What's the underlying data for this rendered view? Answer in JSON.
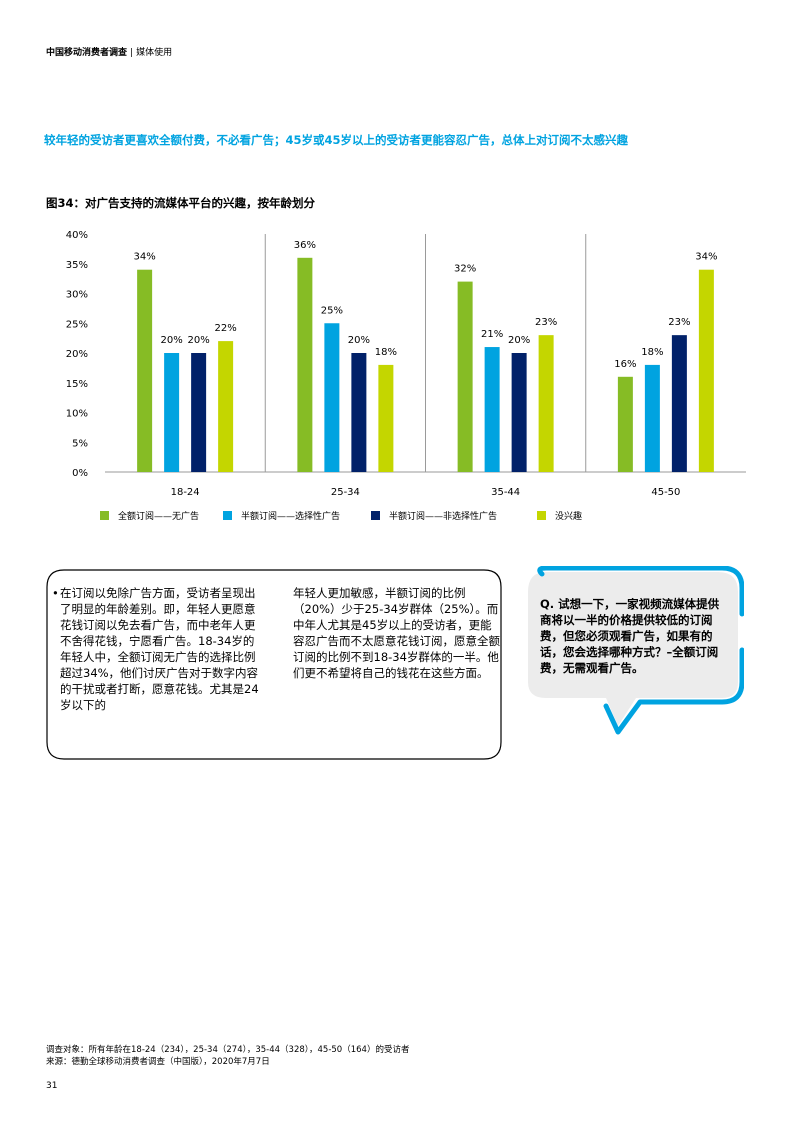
{
  "header": {
    "title": "中国移动消费者调查",
    "separator": "|",
    "section": "媒体使用"
  },
  "subtitle": "较年轻的受访者更喜欢全额付费，不必看广告；45岁或45岁以上的受访者更能容忍广告，总体上对订阅不太感兴趣",
  "figure_title": "图34：对广告支持的流媒体平台的兴趣，按年龄划分",
  "chart_data": {
    "type": "bar",
    "categories": [
      "18-24",
      "25-34",
      "35-44",
      "45-50"
    ],
    "ylim": [
      0,
      40
    ],
    "yticks": [
      "40%",
      "35%",
      "30%",
      "25%",
      "20%",
      "15%",
      "10%",
      "5%",
      "0%"
    ],
    "ytick_values": [
      40,
      35,
      30,
      25,
      20,
      15,
      10,
      5,
      0
    ],
    "grid": false,
    "legend_position": "bottom",
    "series": [
      {
        "name": "全额订阅——无广告",
        "color": "#86bc25",
        "values": [
          34,
          36,
          32,
          16
        ],
        "labels": [
          "34%",
          "36%",
          "32%",
          "16%"
        ]
      },
      {
        "name": "半额订阅——选择性广告",
        "color": "#00a3e0",
        "values": [
          20,
          25,
          21,
          18
        ],
        "labels": [
          "20%",
          "25%",
          "21%",
          "18%"
        ]
      },
      {
        "name": "半额订阅——非选择性广告",
        "color": "#012169",
        "values": [
          20,
          20,
          20,
          23
        ],
        "labels": [
          "20%",
          "20%",
          "20%",
          "23%"
        ]
      },
      {
        "name": "没兴趣",
        "color": "#c4d600",
        "values": [
          22,
          18,
          23,
          34
        ],
        "labels": [
          "22%",
          "18%",
          "23%",
          "34%"
        ]
      }
    ]
  },
  "body": {
    "bullet": "•",
    "col1": "在订阅以免除广告方面，受访者呈现出了明显的年龄差别。即，年轻人更愿意花钱订阅以免去看广告，而中老年人更不舍得花钱，宁愿看广告。18-34岁的年轻人中，全额订阅无广告的选择比例超过34%，他们讨厌广告对于数字内容的干扰或者打断，愿意花钱。尤其是24岁以下的",
    "col2": "年轻人更加敏感，半额订阅的比例（20%）少于25-34岁群体（25%）。而中年人尤其是45岁以上的受访者，更能容忍广告而不太愿意花钱订阅，愿意全额订阅的比例不到18-34岁群体的一半。他们更不希望将自己的钱花在这些方面。"
  },
  "bubble": {
    "text": "Q. 试想一下，一家视频流媒体提供商将以一半的价格提供较低的订阅费，但您必须观看广告，如果有的话，您会选择哪种方式？–全额订阅费，无需观看广告。",
    "border_color": "#00a3e0",
    "fill_color": "#ececec"
  },
  "footnote": {
    "line1": "调查对象：所有年龄在18-24（234），25-34（274），35-44（328），45-50（164）的受访者",
    "line2": "来源：德勤全球移动消费者调查（中国版），2020年7月7日"
  },
  "page_number": "31"
}
